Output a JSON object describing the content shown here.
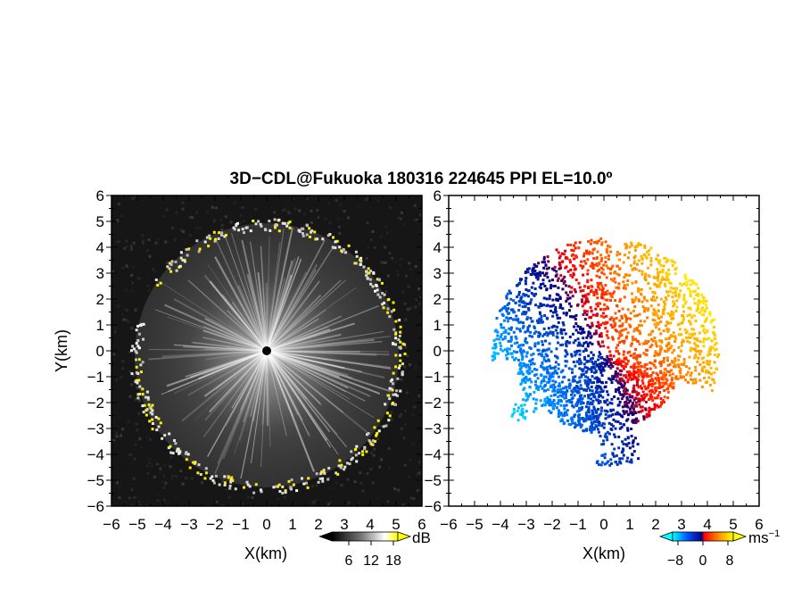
{
  "title": "3D−CDL@Fukuoka 180316 224645 PPI EL=10.0º",
  "chart_data": [
    {
      "type": "heatmap",
      "name": "reflectivity-ppi",
      "xlabel": "X(km)",
      "ylabel": "Y(km)",
      "xlim": [
        -6,
        6
      ],
      "ylim": [
        -6,
        6
      ],
      "ticks": [
        "−6",
        "−5",
        "−4",
        "−3",
        "−2",
        "−1",
        "0",
        "1",
        "2",
        "3",
        "4",
        "5",
        "6"
      ],
      "range_edge_km": 5.1,
      "colorbar": {
        "unit": "dB",
        "ticks": [
          "6",
          "12",
          "18"
        ],
        "range": [
          0,
          24
        ],
        "colors": [
          "#000000",
          "#ffffff",
          "#ffff00"
        ]
      },
      "highlight_color": "#ffee00",
      "background_color": "#161616"
    },
    {
      "type": "heatmap",
      "name": "doppler-velocity-ppi",
      "xlabel": "X(km)",
      "xlim": [
        -6,
        6
      ],
      "ylim": [
        -6,
        6
      ],
      "ticks": [
        "−6",
        "−5",
        "−4",
        "−3",
        "−2",
        "−1",
        "0",
        "1",
        "2",
        "3",
        "4",
        "5",
        "6"
      ],
      "colorbar": {
        "unit": "ms",
        "unit_exponent": "−1",
        "ticks": [
          "−8",
          "0",
          "8"
        ],
        "range": [
          -10,
          10
        ],
        "colors": [
          "#00ffff",
          "#0050ff",
          "#000080",
          "#ff0000",
          "#ff8800",
          "#ffff00"
        ]
      },
      "flow_direction_deg": -30
    }
  ]
}
